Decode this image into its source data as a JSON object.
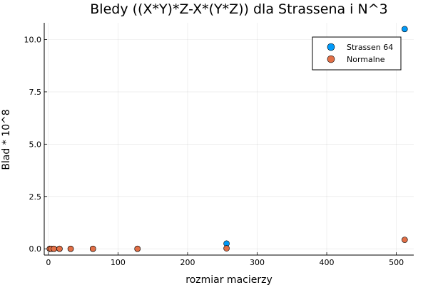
{
  "chart_data": {
    "type": "scatter",
    "title": "Bledy ((X*Y)*Z-X*(Y*Z)) dla Strassena i N^3",
    "xlabel": "rozmiar macierzy",
    "ylabel": "Blad * 10^8",
    "xlim": [
      -6,
      525
    ],
    "ylim": [
      -0.3,
      10.8
    ],
    "xticks": [
      0,
      100,
      200,
      300,
      400,
      500
    ],
    "yticks": [
      0.0,
      2.5,
      5.0,
      7.5,
      10.0
    ],
    "xtick_labels": [
      "0",
      "100",
      "200",
      "300",
      "400",
      "500"
    ],
    "ytick_labels": [
      "0.0",
      "2.5",
      "5.0",
      "7.5",
      "10.0"
    ],
    "grid": true,
    "legend_position": "top-right",
    "series": [
      {
        "name": "Strassen 64",
        "color": "#009af9",
        "x": [
          2,
          4,
          8,
          16,
          32,
          64,
          128,
          256,
          512
        ],
        "y": [
          0.0,
          0.0,
          0.0,
          0.0,
          0.0,
          0.0,
          0.0,
          0.25,
          10.5
        ]
      },
      {
        "name": "Normalne",
        "color": "#e26f46",
        "x": [
          2,
          4,
          8,
          16,
          32,
          64,
          128,
          256,
          512
        ],
        "y": [
          0.0,
          0.0,
          0.0,
          0.0,
          0.0,
          0.0,
          0.0,
          0.02,
          0.43
        ]
      }
    ]
  }
}
